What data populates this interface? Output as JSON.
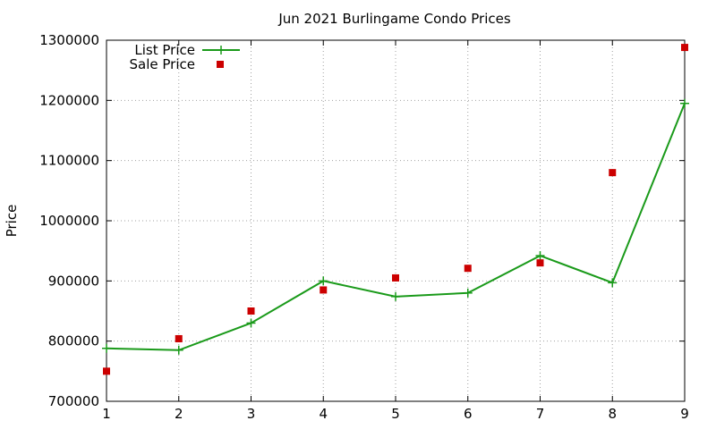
{
  "chart_data": {
    "type": "line",
    "title": "Jun 2021 Burlingame Condo Prices",
    "xlabel": "",
    "ylabel": "Price",
    "xlim": [
      1,
      9
    ],
    "ylim": [
      700000,
      1300000
    ],
    "x_ticks": [
      1,
      2,
      3,
      4,
      5,
      6,
      7,
      8,
      9
    ],
    "y_ticks": [
      700000,
      800000,
      900000,
      1000000,
      1100000,
      1200000,
      1300000
    ],
    "grid": true,
    "legend_position": "top-left",
    "series": [
      {
        "name": "List Price",
        "style": "line-plus",
        "color": "#1a9a1a",
        "x": [
          1,
          2,
          3,
          4,
          5,
          6,
          7,
          8,
          9
        ],
        "values": [
          788000,
          785000,
          830000,
          900000,
          874000,
          880000,
          942000,
          897000,
          1195000
        ]
      },
      {
        "name": "Sale Price",
        "style": "square-points",
        "color": "#cc0000",
        "x": [
          1,
          2,
          3,
          4,
          5,
          6,
          7,
          8,
          9
        ],
        "values": [
          750000,
          804000,
          850000,
          885000,
          905000,
          921000,
          930000,
          1080000,
          1288000
        ]
      }
    ]
  }
}
